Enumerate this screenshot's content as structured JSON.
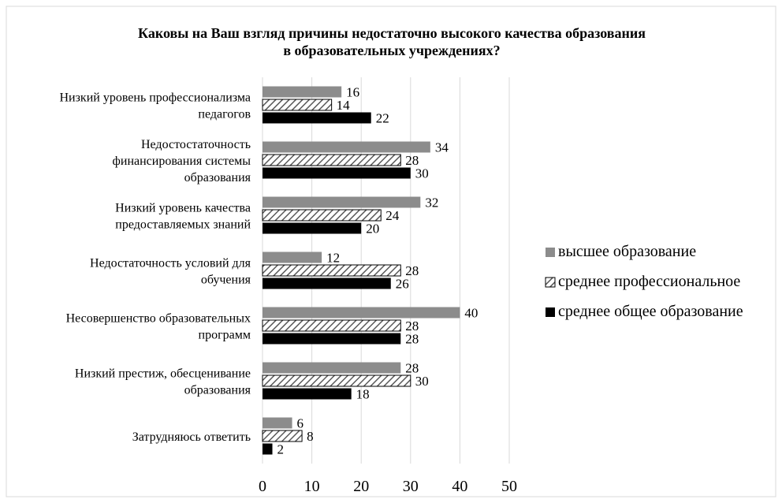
{
  "chart_data": {
    "type": "bar",
    "orientation": "horizontal",
    "title_lines": [
      "Каковы на Ваш взгляд причины недостаточно высокого качества образования",
      "в образовательных учреждениях?"
    ],
    "categories": [
      [
        "Низкий уровень профессионализма",
        "педагогов"
      ],
      [
        "Недостостаточность",
        "финансирования системы",
        "образования"
      ],
      [
        "Низкий уровень качества",
        "предоставляемых знаний"
      ],
      [
        "Недостаточность условий для",
        "обучения"
      ],
      [
        "Несовершенство образовательных",
        "программ"
      ],
      [
        "Низкий престиж, обесценивание",
        "образования"
      ],
      [
        "Затрудняюсь ответить"
      ]
    ],
    "series": [
      {
        "name": "высшее образование",
        "color": "#8c8c8c",
        "pattern": "solid",
        "values": [
          16,
          34,
          32,
          12,
          40,
          28,
          6
        ]
      },
      {
        "name": "среднее профессиональное",
        "color": "#595959",
        "pattern": "hatch",
        "values": [
          14,
          28,
          24,
          28,
          28,
          30,
          8
        ]
      },
      {
        "name": "среднее общее образование",
        "color": "#000000",
        "pattern": "solid",
        "values": [
          22,
          30,
          20,
          26,
          28,
          18,
          2
        ]
      }
    ],
    "xlim": [
      0,
      50
    ],
    "xticks": [
      0,
      10,
      20,
      30,
      40,
      50
    ],
    "grid": "vertical",
    "legend_position": "right"
  }
}
